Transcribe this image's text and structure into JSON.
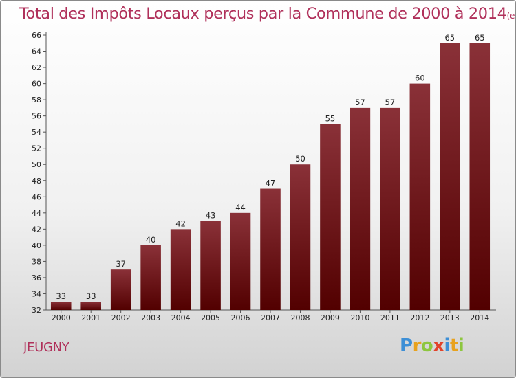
{
  "title": "Total des Impôts Locaux perçus par la Commune de 2000 à 2014",
  "unit": "(en milliers d'€)",
  "commune": "JEUGNY",
  "logo": {
    "letters": [
      {
        "ch": "P",
        "color": "#3d8fd6"
      },
      {
        "ch": "r",
        "color": "#e8a21e"
      },
      {
        "ch": "o",
        "color": "#8dc63f"
      },
      {
        "ch": "x",
        "color": "#e2432a"
      },
      {
        "ch": "i",
        "color": "#3d8fd6"
      },
      {
        "ch": "t",
        "color": "#e8a21e"
      },
      {
        "ch": "i",
        "color": "#8dc63f"
      }
    ]
  },
  "colors": {
    "bar_top": "#8a3138",
    "bar_bottom": "#520000",
    "title": "#b0305a"
  },
  "chart_data": {
    "type": "bar",
    "categories": [
      "2000",
      "2001",
      "2002",
      "2003",
      "2004",
      "2005",
      "2006",
      "2007",
      "2008",
      "2009",
      "2010",
      "2011",
      "2012",
      "2013",
      "2014"
    ],
    "values": [
      33,
      33,
      37,
      40,
      42,
      43,
      44,
      47,
      50,
      55,
      57,
      57,
      60,
      65,
      65
    ],
    "title": "Total des Impôts Locaux perçus par la Commune de 2000 à 2014",
    "xlabel": "",
    "ylabel": "",
    "ylim": [
      32,
      66
    ],
    "yticks": [
      32,
      34,
      36,
      38,
      40,
      42,
      44,
      46,
      48,
      50,
      52,
      54,
      56,
      58,
      60,
      62,
      64,
      66
    ],
    "grid": false
  }
}
